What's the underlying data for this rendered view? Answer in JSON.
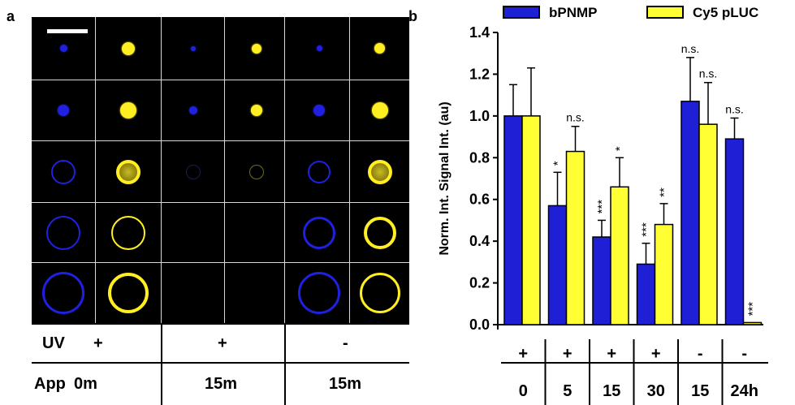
{
  "panel_a": {
    "letter": "a",
    "rows": [
      {
        "label": "UV",
        "values": [
          "+",
          "+",
          "-"
        ]
      },
      {
        "label": "App",
        "values": [
          "0m",
          "15m",
          "15m"
        ]
      }
    ],
    "colors": {
      "blue_channel": "#2020e0",
      "yellow_channel": "#ffee22"
    }
  },
  "panel_b": {
    "letter": "b"
  },
  "chart_data": {
    "type": "bar",
    "ylabel": "Norm. Int. Signal Int. (au)",
    "ylim": [
      0,
      1.4
    ],
    "yticks": [
      "0.0",
      "0.2",
      "0.4",
      "0.6",
      "0.8",
      "1.0",
      "1.2",
      "1.4"
    ],
    "categories": [
      "0",
      "5",
      "15",
      "30",
      "15",
      "24h"
    ],
    "uv": [
      "+",
      "+",
      "+",
      "+",
      "-",
      "-"
    ],
    "series": [
      {
        "name": "bPNMP",
        "color": "#1f1fd6",
        "values": [
          1.0,
          0.57,
          0.42,
          0.29,
          1.07,
          0.89
        ],
        "errors": [
          0.15,
          0.16,
          0.08,
          0.1,
          0.21,
          0.1
        ],
        "significance": [
          "",
          "*",
          "***",
          "***",
          "n.s.",
          "n.s."
        ]
      },
      {
        "name": "Cy5 pLUC",
        "color": "#ffff33",
        "values": [
          1.0,
          0.83,
          0.66,
          0.48,
          0.96,
          0.01
        ],
        "errors": [
          0.23,
          0.12,
          0.14,
          0.1,
          0.2,
          0.0
        ],
        "significance": [
          "",
          "n.s.",
          "*",
          "**",
          "n.s.",
          "***"
        ]
      }
    ],
    "legend_position": "top"
  }
}
